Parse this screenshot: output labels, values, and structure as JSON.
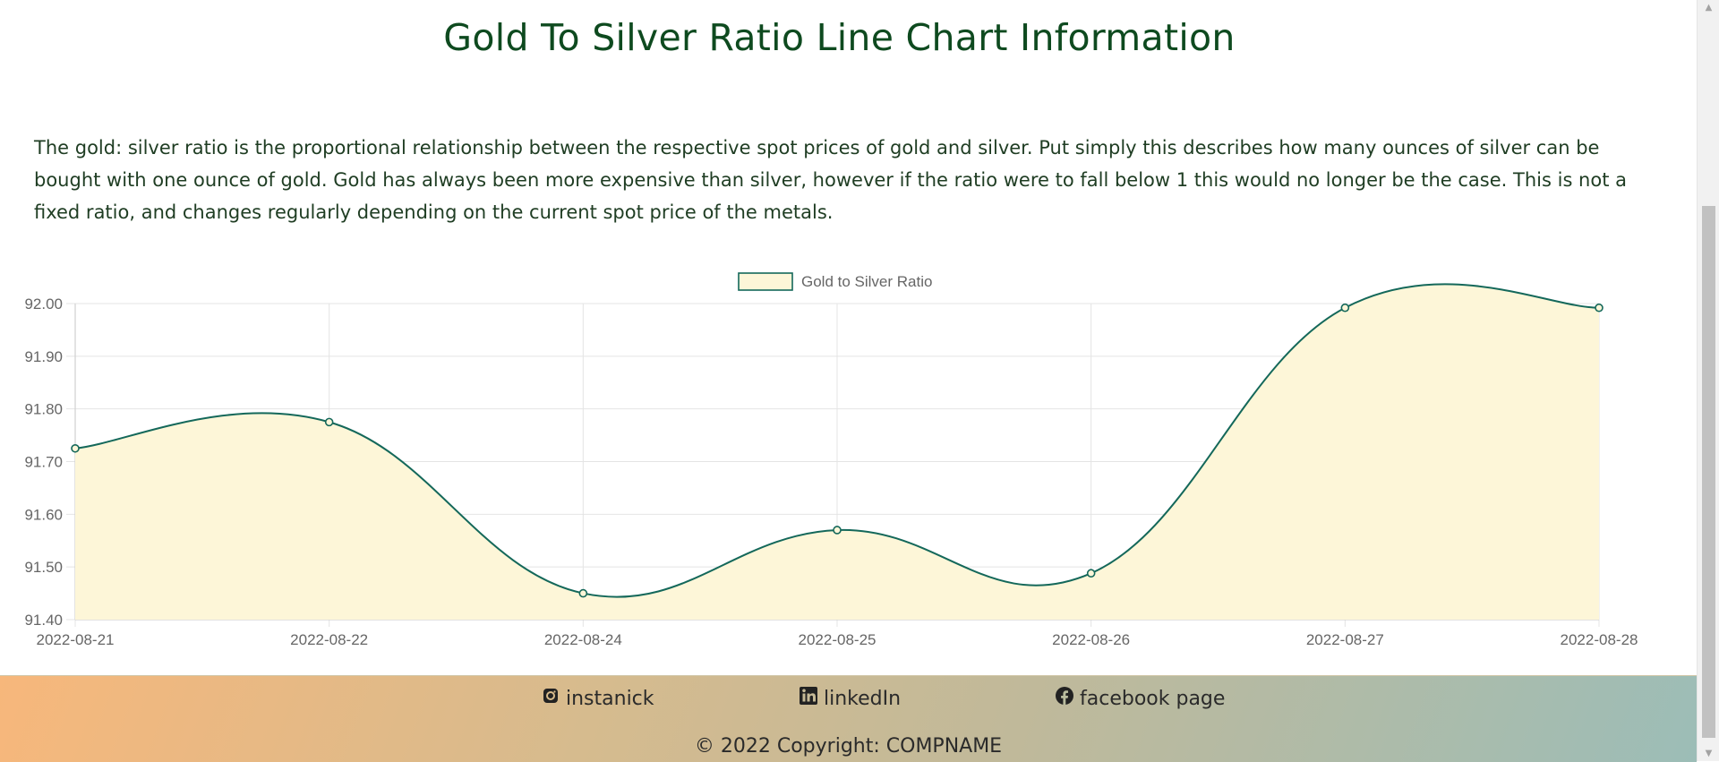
{
  "header": {
    "title": "Gold To Silver Ratio Line Chart Information",
    "description": "The gold: silver ratio is the proportional relationship between the respective spot prices of gold and silver. Put simply this describes how many ounces of silver can be bought with one ounce of gold. Gold has always been more expensive than silver, however if the ratio were to fall below 1 this would no longer be the case. This is not a fixed ratio, and changes regularly depending on the current spot price of the metals."
  },
  "chart_data": {
    "type": "line",
    "title": "",
    "xlabel": "",
    "ylabel": "",
    "legend": "top-center",
    "grid": true,
    "fill": true,
    "smooth": true,
    "colors": {
      "line": "#14685a",
      "fill": "#fdf6d8",
      "grid": "#e4e4e4",
      "axis_text": "#666666"
    },
    "categories": [
      "2022-08-21",
      "2022-08-22",
      "2022-08-24",
      "2022-08-25",
      "2022-08-26",
      "2022-08-27",
      "2022-08-28"
    ],
    "series": [
      {
        "name": "Gold to Silver Ratio",
        "values": [
          91.725,
          91.775,
          91.45,
          91.57,
          91.488,
          91.992,
          91.992
        ]
      }
    ],
    "ylim": [
      91.4,
      92.0
    ],
    "yticks": [
      "92.00",
      "91.90",
      "91.80",
      "91.70",
      "91.60",
      "91.50",
      "91.40"
    ]
  },
  "footer": {
    "links": [
      {
        "label": "instanick",
        "icon": "instagram-icon"
      },
      {
        "label": "linkedIn",
        "icon": "linkedin-icon"
      },
      {
        "label": "facebook page",
        "icon": "facebook-icon"
      }
    ],
    "copyright": "© 2022 Copyright: COMPNAME"
  }
}
